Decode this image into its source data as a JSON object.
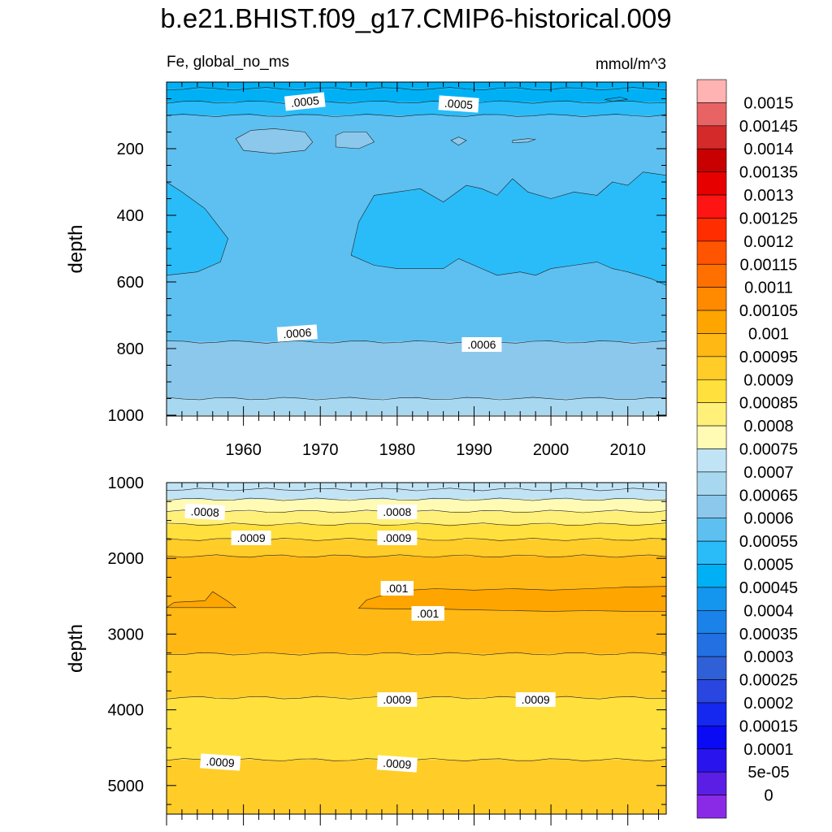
{
  "chart_data": {
    "type": "heatmap",
    "title": "b.e21.BHIST.f09_g17.CMIP6-historical.009",
    "variable_label": "Fe, global_no_ms",
    "units_label": "mmol/m^3",
    "x": {
      "range": [
        1950,
        2015
      ],
      "tick_labels": [
        "1960",
        "1970",
        "1980",
        "1990",
        "2000",
        "2010"
      ]
    },
    "colorbar": {
      "labels": [
        "0.0015",
        "0.00145",
        "0.0014",
        "0.00135",
        "0.0013",
        "0.00125",
        "0.0012",
        "0.00115",
        "0.0011",
        "0.00105",
        "0.001",
        "0.00095",
        "0.0009",
        "0.00085",
        "0.0008",
        "0.00075",
        "0.0007",
        "0.00065",
        "0.0006",
        "0.00055",
        "0.0005",
        "0.00045",
        "0.0004",
        "0.00035",
        "0.0003",
        "0.00025",
        "0.0002",
        "0.00015",
        "0.0001",
        "5e-05",
        "0"
      ],
      "colors_top_to_bottom": [
        "#ffb3b3",
        "#e86464",
        "#d42a2a",
        "#c80000",
        "#e60000",
        "#ff1414",
        "#ff2d00",
        "#ff5500",
        "#ff7000",
        "#ff8a00",
        "#ffa500",
        "#ffb814",
        "#ffcc28",
        "#ffe03c",
        "#fff07a",
        "#fffab4",
        "#c0e4f5",
        "#a8d8f0",
        "#8cc8ec",
        "#5ec0f0",
        "#2abcf8",
        "#00b0f4",
        "#1496ee",
        "#1a82e8",
        "#2270e2",
        "#3060d8",
        "#2a46e0",
        "#1428f0",
        "#0a0af5",
        "#2a14ee",
        "#5a1ee4",
        "#8a2ae6"
      ]
    },
    "panels": [
      {
        "name": "upper",
        "ylabel": "depth",
        "ylim": [
          1000,
          0
        ],
        "y_tick_labels": [
          "200",
          "400",
          "600",
          "800",
          "1000"
        ],
        "contour_labels": [
          ".0005",
          ".0005",
          ".0006",
          ".0006"
        ],
        "bands": [
          {
            "from": 0,
            "to": 20,
            "value": 0.000475,
            "color": "#00b0f4"
          },
          {
            "from": 20,
            "to": 60,
            "value": 0.000475,
            "color": "#00b0f4"
          },
          {
            "from": 60,
            "to": 100,
            "value": 0.000525,
            "color": "#2abcf8"
          },
          {
            "from": 100,
            "to": 780,
            "value": 0.000575,
            "color": "#5ec0f0"
          },
          {
            "from": 780,
            "to": 950,
            "value": 0.000625,
            "color": "#8cc8ec"
          },
          {
            "from": 950,
            "to": 1000,
            "value": 0.000675,
            "color": "#a8d8f0"
          }
        ],
        "features": [
          {
            "kind": "blob",
            "value": 0.000525,
            "color": "#2abcf8",
            "desc": "mid-depth core 300-600m, 1974-2015",
            "pts": [
              [
                1974,
                520
              ],
              [
                1975,
                420
              ],
              [
                1977,
                340
              ],
              [
                1980,
                330
              ],
              [
                1983,
                320
              ],
              [
                1986,
                360
              ],
              [
                1989,
                310
              ],
              [
                1991,
                320
              ],
              [
                1993,
                340
              ],
              [
                1995,
                290
              ],
              [
                1997,
                330
              ],
              [
                2000,
                350
              ],
              [
                2003,
                330
              ],
              [
                2006,
                340
              ],
              [
                2008,
                300
              ],
              [
                2010,
                310
              ],
              [
                2012,
                270
              ],
              [
                2015,
                280
              ],
              [
                2015,
                610
              ],
              [
                2013,
                590
              ],
              [
                2010,
                570
              ],
              [
                2008,
                560
              ],
              [
                2006,
                540
              ],
              [
                2003,
                550
              ],
              [
                2000,
                560
              ],
              [
                1998,
                580
              ],
              [
                1996,
                570
              ],
              [
                1993,
                580
              ],
              [
                1991,
                560
              ],
              [
                1988,
                530
              ],
              [
                1986,
                560
              ],
              [
                1983,
                560
              ],
              [
                1980,
                560
              ],
              [
                1977,
                550
              ]
            ]
          },
          {
            "kind": "blob",
            "value": 0.000525,
            "color": "#2abcf8",
            "desc": "mid-depth core left",
            "pts": [
              [
                1950,
                300
              ],
              [
                1952,
                330
              ],
              [
                1955,
                380
              ],
              [
                1958,
                470
              ],
              [
                1957,
                540
              ],
              [
                1954,
                570
              ],
              [
                1950,
                580
              ]
            ]
          },
          {
            "kind": "blob",
            "value": 0.000625,
            "color": "#8cc8ec",
            "desc": "near-surface patch 1959-1968",
            "pts": [
              [
                1959,
                170
              ],
              [
                1961,
                145
              ],
              [
                1964,
                140
              ],
              [
                1968,
                150
              ],
              [
                1969,
                180
              ],
              [
                1968,
                205
              ],
              [
                1964,
                215
              ],
              [
                1960,
                205
              ]
            ]
          },
          {
            "kind": "blob",
            "value": 0.000625,
            "color": "#8cc8ec",
            "desc": "near-surface patch 1972",
            "pts": [
              [
                1972,
                160
              ],
              [
                1973,
                150
              ],
              [
                1976,
                150
              ],
              [
                1977,
                180
              ],
              [
                1975,
                200
              ],
              [
                1972,
                195
              ]
            ]
          },
          {
            "kind": "blob",
            "value": 0.000625,
            "color": "#8cc8ec",
            "desc": "small patch 1987",
            "pts": [
              [
                1987,
                175
              ],
              [
                1988,
                165
              ],
              [
                1989,
                175
              ],
              [
                1988,
                190
              ]
            ]
          },
          {
            "kind": "blob",
            "value": 0.000625,
            "color": "#8cc8ec",
            "desc": "small patch 1996",
            "pts": [
              [
                1995,
                175
              ],
              [
                1997,
                170
              ],
              [
                1998,
                172
              ],
              [
                1997,
                180
              ],
              [
                1995,
                182
              ]
            ]
          },
          {
            "kind": "blob",
            "value": 0.000475,
            "color": "#00b0f4",
            "desc": "tiny patch 2007",
            "pts": [
              [
                2007,
                52
              ],
              [
                2009,
                45
              ],
              [
                2010,
                52
              ],
              [
                2008,
                58
              ]
            ]
          }
        ]
      },
      {
        "name": "lower",
        "ylabel": "depth",
        "ylim": [
          1000,
          5400
        ],
        "y_tick_labels": [
          "1000",
          "2000",
          "3000",
          "4000",
          "5000"
        ],
        "contour_labels": [
          ".0008",
          ".0008",
          ".0009",
          ".0009",
          ".001",
          ".001",
          ".0009",
          ".0009",
          ".0009",
          ".0009"
        ],
        "bands": [
          {
            "from": 1000,
            "to": 1090,
            "value": 0.000675,
            "color": "#c0e4f5"
          },
          {
            "from": 1090,
            "to": 1220,
            "value": 0.000725,
            "color": "#c0e4f5"
          },
          {
            "from": 1220,
            "to": 1380,
            "value": 0.000775,
            "color": "#fffab4"
          },
          {
            "from": 1380,
            "to": 1550,
            "value": 0.000825,
            "color": "#fff07a"
          },
          {
            "from": 1550,
            "to": 1750,
            "value": 0.000875,
            "color": "#ffe03c"
          },
          {
            "from": 1750,
            "to": 1970,
            "value": 0.000925,
            "color": "#ffcc28"
          },
          {
            "from": 1970,
            "to": 3260,
            "value": 0.000975,
            "color": "#ffb814"
          },
          {
            "from": 3260,
            "to": 3840,
            "value": 0.000925,
            "color": "#ffcc28"
          },
          {
            "from": 3840,
            "to": 4660,
            "value": 0.000875,
            "color": "#ffe03c"
          },
          {
            "from": 4660,
            "to": 5400,
            "value": 0.000925,
            "color": "#ffcc28"
          }
        ],
        "features": [
          {
            "kind": "blob",
            "value": 0.001025,
            "color": "#ffa500",
            "desc": "core 1975-2015",
            "pts": [
              [
                1975,
                2660
              ],
              [
                1976,
                2550
              ],
              [
                1980,
                2430
              ],
              [
                1985,
                2400
              ],
              [
                1990,
                2420
              ],
              [
                1995,
                2400
              ],
              [
                2000,
                2420
              ],
              [
                2005,
                2400
              ],
              [
                2010,
                2380
              ],
              [
                2015,
                2370
              ],
              [
                2015,
                2700
              ],
              [
                2010,
                2700
              ],
              [
                2005,
                2690
              ],
              [
                2000,
                2700
              ],
              [
                1995,
                2690
              ],
              [
                1990,
                2680
              ],
              [
                1985,
                2670
              ],
              [
                1980,
                2670
              ]
            ]
          },
          {
            "kind": "blob",
            "value": 0.001025,
            "color": "#ffa500",
            "desc": "core left",
            "pts": [
              [
                1950,
                2650
              ],
              [
                1951,
                2580
              ],
              [
                1955,
                2560
              ],
              [
                1956,
                2440
              ],
              [
                1958,
                2570
              ],
              [
                1959,
                2650
              ]
            ]
          }
        ]
      }
    ]
  }
}
